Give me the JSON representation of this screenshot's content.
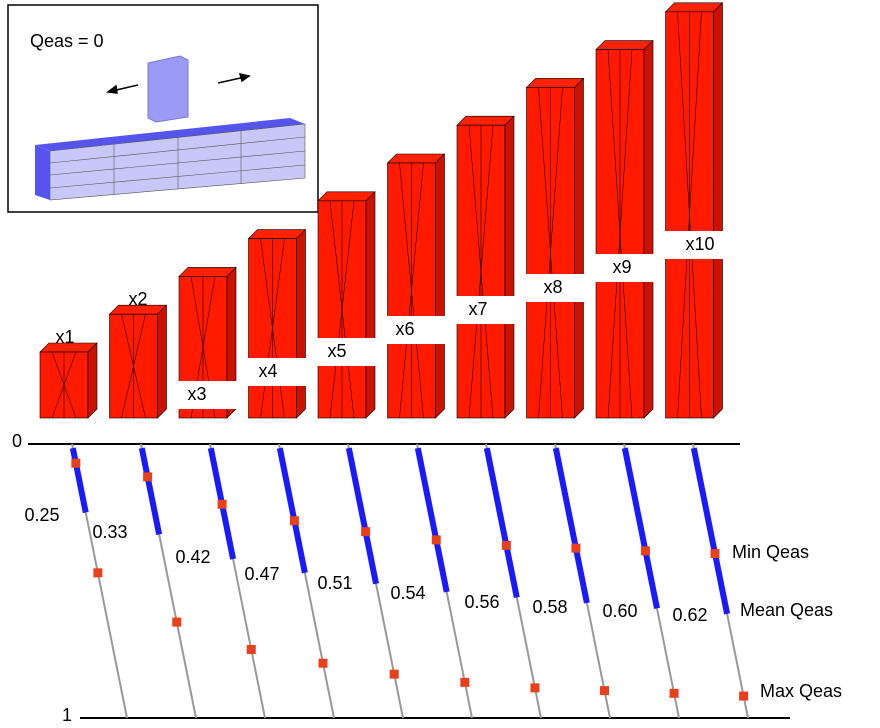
{
  "inset": {
    "label": "Qeas = 0"
  },
  "chart_data": {
    "type": "quality-scale",
    "ylim": [
      0,
      1
    ],
    "yticks": [
      0,
      1
    ],
    "categories": [
      "x1",
      "x2",
      "x3",
      "x4",
      "x5",
      "x6",
      "x7",
      "x8",
      "x9",
      "x10"
    ],
    "series": [
      {
        "name": "Min Qeas",
        "color": "#e8401c",
        "values": [
          0.07,
          0.12,
          0.22,
          0.28,
          0.32,
          0.35,
          0.37,
          0.38,
          0.39,
          0.4
        ]
      },
      {
        "name": "Mean Qeas",
        "color": "#1a1aff",
        "values": [
          0.25,
          0.33,
          0.42,
          0.47,
          0.51,
          0.54,
          0.56,
          0.58,
          0.6,
          0.62
        ],
        "value_labels": [
          "0.25",
          "0.33",
          "0.42",
          "0.47",
          "0.51",
          "0.54",
          "0.56",
          "0.58",
          "0.60",
          "0.62"
        ]
      },
      {
        "name": "Max Qeas",
        "color": "#e8401c",
        "values": [
          0.47,
          0.65,
          0.75,
          0.8,
          0.84,
          0.87,
          0.89,
          0.9,
          0.91,
          0.92
        ]
      }
    ]
  }
}
